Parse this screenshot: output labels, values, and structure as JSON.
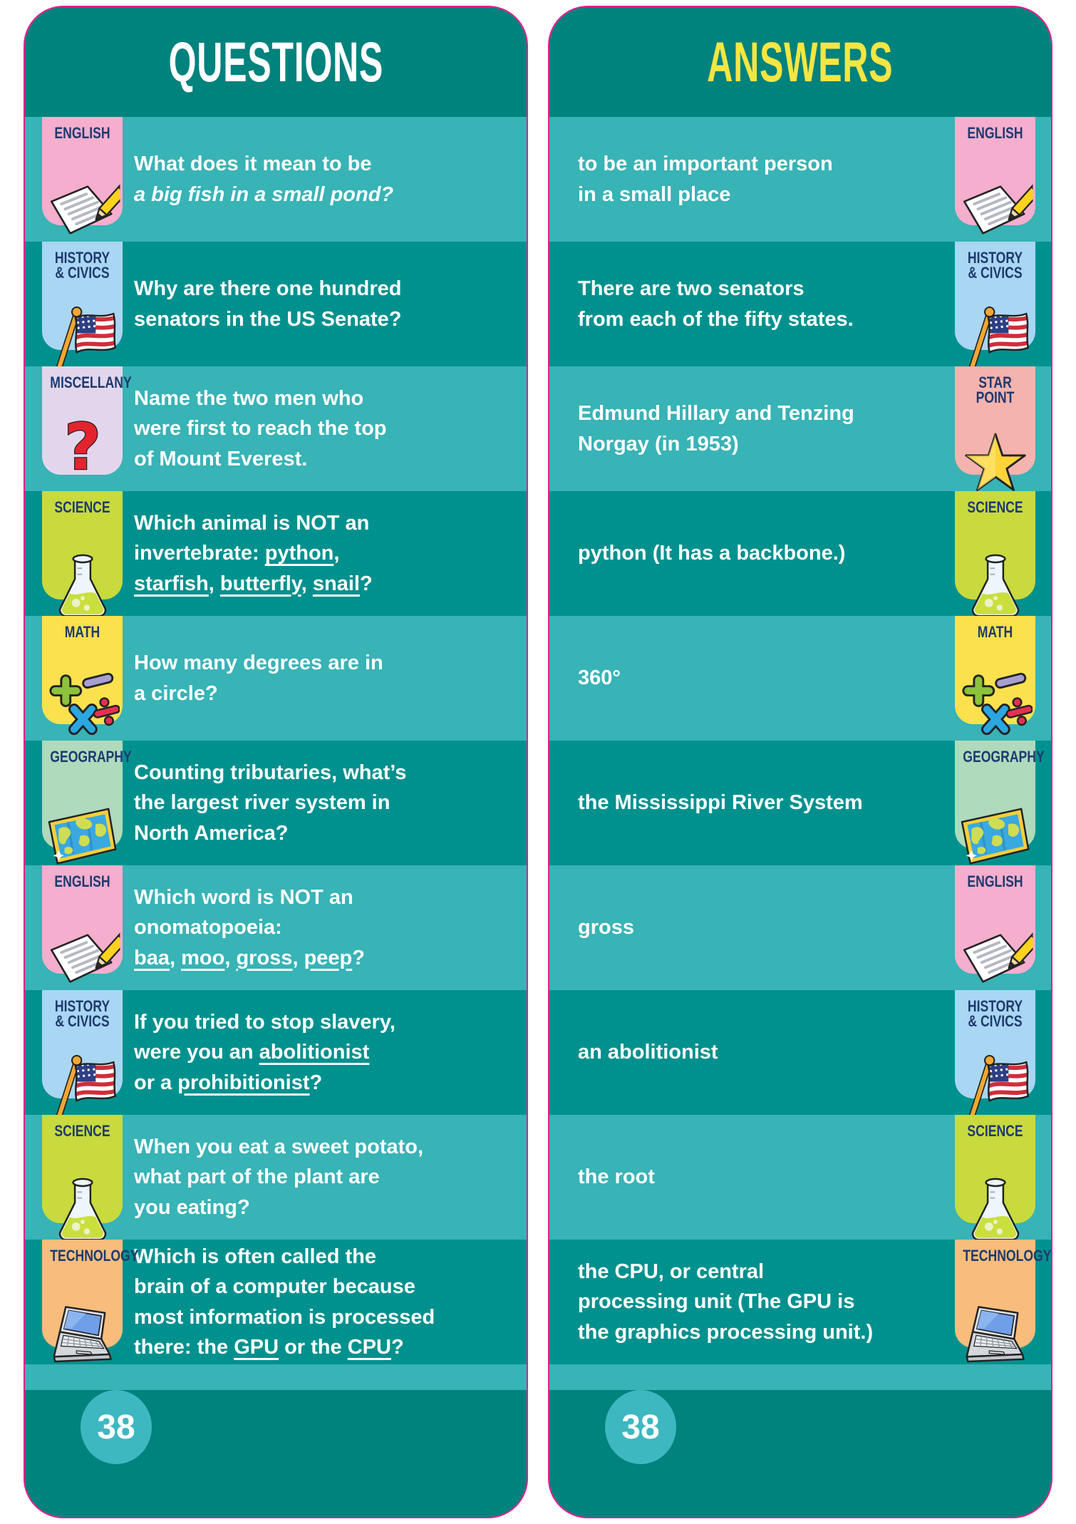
{
  "colors": {
    "header_bg": "#00827d",
    "row_light": "#38b3b6",
    "row_dark": "#00918e",
    "card_border": "#e81c8e",
    "circle_bg": "#3db8c0",
    "badge_text": "#1e3a6e",
    "questions_title_color": "#ffffff",
    "answers_title_color": "#f5e642"
  },
  "categories": {
    "ENGLISH": {
      "bg": "#f5aecd",
      "icon": "paper-pencil-icon"
    },
    "HISTORY & CIVICS": {
      "bg": "#a9d6f2",
      "icon": "us-flag-icon",
      "label": "HISTORY\n& CIVICS"
    },
    "MISCELLANY": {
      "bg": "#e3d6ec",
      "icon": "question-mark-icon"
    },
    "SCIENCE": {
      "bg": "#c8da3e",
      "icon": "flask-icon"
    },
    "MATH": {
      "bg": "#fbe14e",
      "icon": "math-symbols-icon"
    },
    "GEOGRAPHY": {
      "bg": "#afdabc",
      "icon": "world-map-icon"
    },
    "TECHNOLOGY": {
      "bg": "#f8bd7c",
      "icon": "laptop-icon"
    },
    "STAR POINT": {
      "bg": "#f5b3ae",
      "icon": "star-icon",
      "label": "STAR\nPOINT"
    }
  },
  "cards": {
    "questions": {
      "title": "QUESTIONS",
      "page_number": "38",
      "rows": [
        {
          "category": "ENGLISH",
          "text": "What does it mean to be\n*a big fish in a small pond?*"
        },
        {
          "category": "HISTORY & CIVICS",
          "text": "Why are there one hundred\nsenators in the US Senate?"
        },
        {
          "category": "MISCELLANY",
          "text": "Name the two men who\nwere first to reach the top\nof Mount Everest."
        },
        {
          "category": "SCIENCE",
          "text": "Which animal is NOT an\ninvertebrate: _python_,\n_starfish_, _butterfly_, _snail_?"
        },
        {
          "category": "MATH",
          "text": "How many degrees are in\na circle?"
        },
        {
          "category": "GEOGRAPHY",
          "text": "Counting tributaries, what’s\nthe largest river system in\nNorth America?"
        },
        {
          "category": "ENGLISH",
          "text": "Which word is NOT an\nonomatopoeia:\n_baa_, _moo_, _gross_, _peep_?"
        },
        {
          "category": "HISTORY & CIVICS",
          "text": "If you tried to stop slavery,\nwere you an _abolitionist_\nor a _prohibitionist_?"
        },
        {
          "category": "SCIENCE",
          "text": "When you eat a sweet potato,\nwhat part of the plant are\nyou eating?"
        },
        {
          "category": "TECHNOLOGY",
          "text": "Which is often called the\nbrain of a computer because\nmost information is processed\nthere: the _GPU_ or the _CPU_?"
        }
      ]
    },
    "answers": {
      "title": "ANSWERS",
      "page_number": "38",
      "rows": [
        {
          "category": "ENGLISH",
          "text": "to be an important person\nin a small place"
        },
        {
          "category": "HISTORY & CIVICS",
          "text": "There are two senators\nfrom each of the fifty states."
        },
        {
          "category": "STAR POINT",
          "text": "Edmund Hillary and Tenzing\nNorgay (in 1953)"
        },
        {
          "category": "SCIENCE",
          "text": "python (It has a backbone.)"
        },
        {
          "category": "MATH",
          "text": "360°"
        },
        {
          "category": "GEOGRAPHY",
          "text": "the Mississippi River System"
        },
        {
          "category": "ENGLISH",
          "text": "gross"
        },
        {
          "category": "HISTORY & CIVICS",
          "text": "an abolitionist"
        },
        {
          "category": "SCIENCE",
          "text": "the root"
        },
        {
          "category": "TECHNOLOGY",
          "text": "the CPU, or central\nprocessing unit (The GPU is\nthe graphics processing unit.)"
        }
      ]
    }
  }
}
